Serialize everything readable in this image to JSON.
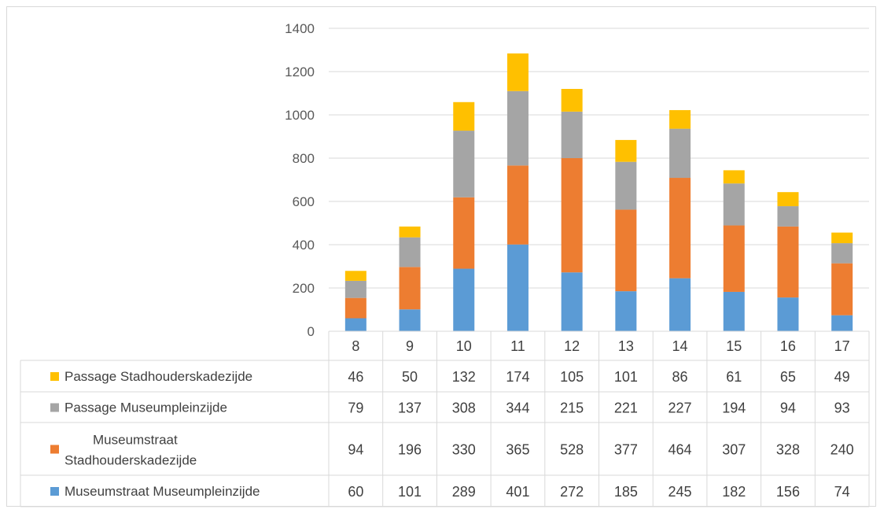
{
  "chart_data": {
    "type": "bar",
    "stacked": true,
    "categories": [
      "8",
      "9",
      "10",
      "11",
      "12",
      "13",
      "14",
      "15",
      "16",
      "17"
    ],
    "ylim": [
      0,
      1400
    ],
    "yticks": [
      0,
      200,
      400,
      600,
      800,
      1000,
      1200,
      1400
    ],
    "grid": true,
    "legend": "data-table",
    "series": [
      {
        "name": "Museumstraat Museumpleinzijde",
        "color": "#5b9bd5",
        "values": [
          60,
          101,
          289,
          401,
          272,
          185,
          245,
          182,
          156,
          74
        ]
      },
      {
        "name": "Museumstraat Stadhouderskadezijde",
        "name_lines": [
          "Museumstraat",
          "Stadhouderskadezijde"
        ],
        "color": "#ed7d31",
        "values": [
          94,
          196,
          330,
          365,
          528,
          377,
          464,
          307,
          328,
          240
        ]
      },
      {
        "name": "Passage Museumpleinzijde",
        "color": "#a5a5a5",
        "values": [
          79,
          137,
          308,
          344,
          215,
          221,
          227,
          194,
          94,
          93
        ]
      },
      {
        "name": "Passage Stadhouderskadezijde",
        "color": "#ffc000",
        "values": [
          46,
          50,
          132,
          174,
          105,
          101,
          86,
          61,
          65,
          49
        ]
      }
    ],
    "table_row_order": [
      3,
      2,
      1,
      0
    ]
  }
}
